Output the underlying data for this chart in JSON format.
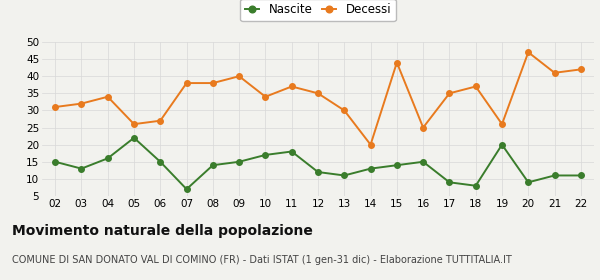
{
  "years": [
    "02",
    "03",
    "04",
    "05",
    "06",
    "07",
    "08",
    "09",
    "10",
    "11",
    "12",
    "13",
    "14",
    "15",
    "16",
    "17",
    "18",
    "19",
    "20",
    "21",
    "22"
  ],
  "nascite": [
    15,
    13,
    16,
    22,
    15,
    7,
    14,
    15,
    17,
    18,
    12,
    11,
    13,
    14,
    15,
    9,
    8,
    20,
    9,
    11,
    11
  ],
  "decessi": [
    31,
    32,
    34,
    26,
    27,
    38,
    38,
    40,
    34,
    37,
    35,
    30,
    20,
    44,
    25,
    35,
    37,
    26,
    47,
    41,
    42
  ],
  "nascite_color": "#3a7d2c",
  "decessi_color": "#e87a1e",
  "background_color": "#f2f2ee",
  "grid_color": "#d8d8d8",
  "ylim": [
    5,
    50
  ],
  "yticks": [
    5,
    10,
    15,
    20,
    25,
    30,
    35,
    40,
    45,
    50
  ],
  "title": "Movimento naturale della popolazione",
  "subtitle": "COMUNE DI SAN DONATO VAL DI COMINO (FR) - Dati ISTAT (1 gen-31 dic) - Elaborazione TUTTITALIA.IT",
  "legend_nascite": "Nascite",
  "legend_decessi": "Decessi",
  "title_fontsize": 10,
  "subtitle_fontsize": 7,
  "axis_fontsize": 7.5,
  "legend_fontsize": 8.5,
  "marker_size": 4,
  "line_width": 1.4
}
